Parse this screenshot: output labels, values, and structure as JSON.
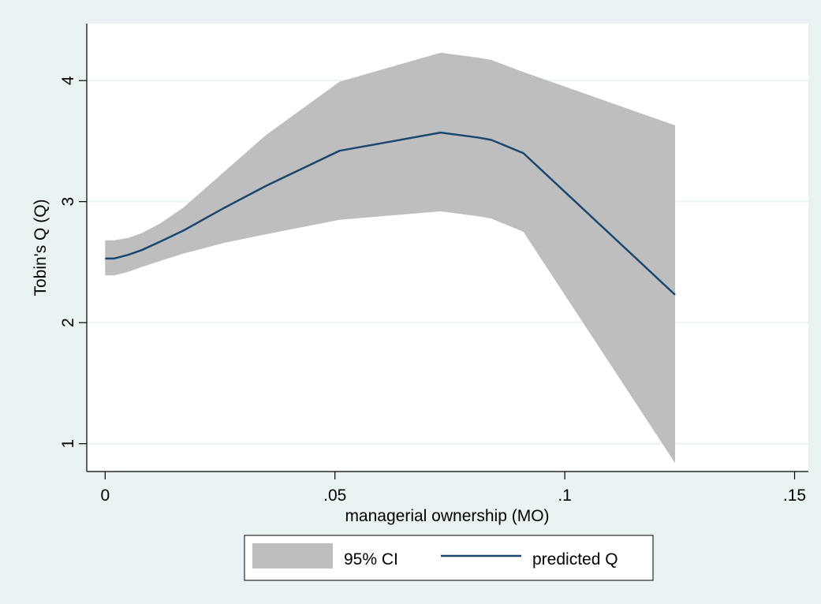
{
  "chart_data": {
    "type": "area",
    "title": "",
    "xlabel": "managerial ownership (MO)",
    "ylabel": "Tobin's Q (Q)",
    "xlim": [
      -0.004,
      0.153
    ],
    "ylim": [
      0.77,
      4.47
    ],
    "xticks": [
      0,
      0.05,
      0.1,
      0.15
    ],
    "xtick_labels": [
      "0",
      ".05",
      ".1",
      ".15"
    ],
    "yticks": [
      1,
      2,
      3,
      4
    ],
    "ytick_labels": [
      "1",
      "2",
      "3",
      "4"
    ],
    "grid": "horizontal",
    "legend_position": "bottom",
    "series": [
      {
        "name": "95% CI",
        "kind": "band",
        "color": "#bebebe",
        "x": [
          0,
          0.002,
          0.005,
          0.008,
          0.012,
          0.017,
          0.026,
          0.035,
          0.051,
          0.073,
          0.081,
          0.084,
          0.091,
          0.124
        ],
        "upper": [
          2.68,
          2.68,
          2.7,
          2.74,
          2.82,
          2.95,
          3.25,
          3.55,
          3.99,
          4.23,
          4.19,
          4.17,
          4.07,
          3.63
        ],
        "lower": [
          2.39,
          2.39,
          2.42,
          2.46,
          2.51,
          2.57,
          2.66,
          2.73,
          2.85,
          2.92,
          2.88,
          2.86,
          2.75,
          0.84
        ]
      },
      {
        "name": "predicted Q",
        "kind": "line",
        "color": "#1a476f",
        "x": [
          0,
          0.002,
          0.005,
          0.008,
          0.012,
          0.017,
          0.026,
          0.035,
          0.051,
          0.073,
          0.081,
          0.084,
          0.091,
          0.124
        ],
        "y": [
          2.53,
          2.53,
          2.56,
          2.6,
          2.67,
          2.76,
          2.95,
          3.13,
          3.42,
          3.57,
          3.53,
          3.51,
          3.4,
          2.23
        ]
      }
    ]
  }
}
